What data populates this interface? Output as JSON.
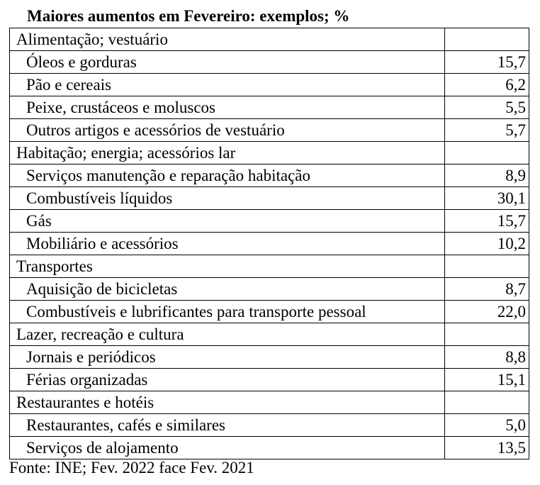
{
  "title": "Maiores aumentos em Fevereiro: exemplos; %",
  "rows": [
    {
      "type": "category",
      "label": "Alimentação; vestuário",
      "value": ""
    },
    {
      "type": "item",
      "label": "Óleos e gorduras",
      "value": "15,7"
    },
    {
      "type": "item",
      "label": "Pão e cereais",
      "value": "6,2"
    },
    {
      "type": "item",
      "label": "Peixe, crustáceos e moluscos",
      "value": "5,5"
    },
    {
      "type": "item",
      "label": "Outros artigos e acessórios de vestuário",
      "value": "5,7"
    },
    {
      "type": "category",
      "label": "Habitação; energia; acessórios lar",
      "value": ""
    },
    {
      "type": "item",
      "label": "Serviços manutenção e reparação habitação",
      "value": "8,9"
    },
    {
      "type": "item",
      "label": "Combustíveis líquidos",
      "value": "30,1"
    },
    {
      "type": "item",
      "label": "Gás",
      "value": "15,7"
    },
    {
      "type": "item",
      "label": "Mobiliário e acessórios",
      "value": "10,2"
    },
    {
      "type": "category",
      "label": "Transportes",
      "value": ""
    },
    {
      "type": "item",
      "label": "Aquisição de bicicletas",
      "value": "8,7"
    },
    {
      "type": "item",
      "label": "Combustíveis e lubrificantes para transporte pessoal",
      "value": "22,0"
    },
    {
      "type": "category",
      "label": "Lazer, recreação e cultura",
      "value": ""
    },
    {
      "type": "item",
      "label": "Jornais e periódicos",
      "value": "8,8"
    },
    {
      "type": "item",
      "label": "Férias organizadas",
      "value": "15,1"
    },
    {
      "type": "category",
      "label": "Restaurantes e hotéis",
      "value": ""
    },
    {
      "type": "item",
      "label": "Restaurantes, cafés e similares",
      "value": "5,0"
    },
    {
      "type": "item",
      "label": "Serviços de alojamento",
      "value": "13,5"
    }
  ],
  "source": "Fonte: INE; Fev. 2022 face Fev. 2021"
}
